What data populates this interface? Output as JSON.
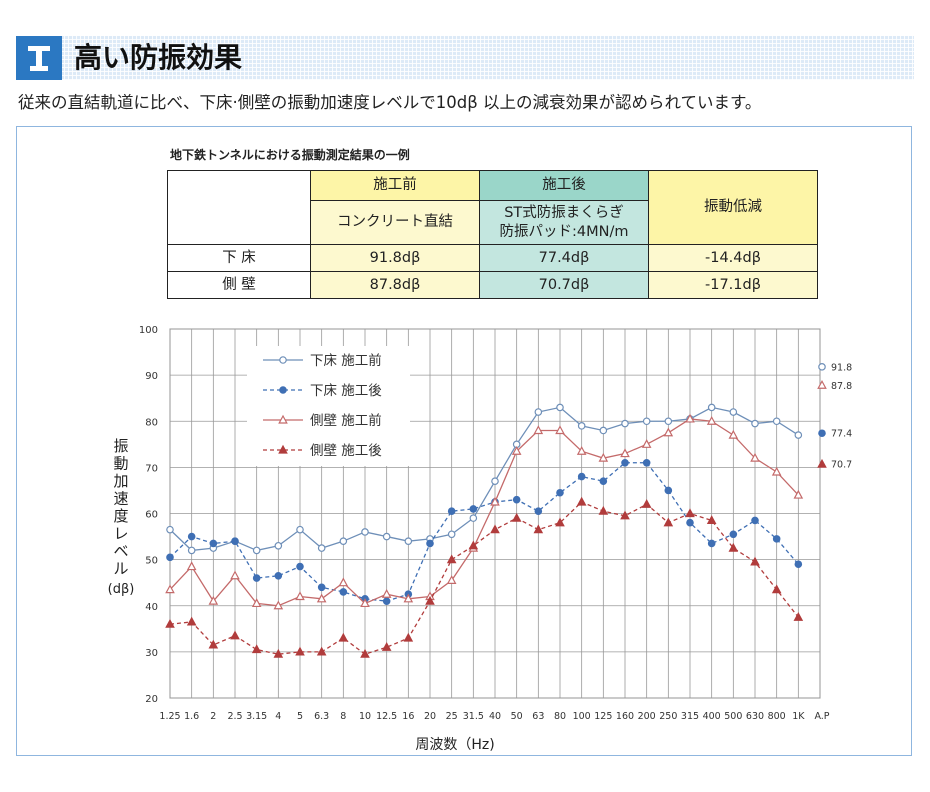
{
  "header": {
    "title": "高い防振効果",
    "icon": "rail-icon",
    "icon_color": "#2b78c2",
    "bar_color": "#ddeaf7"
  },
  "intro": "従来の直結軌道に比べ、下床·側壁の振動加速度レベルで10dβ 以上の減衰効果が認められています。",
  "table": {
    "caption": "地下鉄トンネルにおける振動測定結果の一例",
    "col_before": "施工前",
    "col_before_sub": "コンクリート直結",
    "col_after": "施工後",
    "col_after_sub1": "ST式防振まくらぎ",
    "col_after_sub2": "防振パッド:4MN/m",
    "col_reduction": "振動低減",
    "rows": [
      {
        "label": "下 床",
        "before": "91.8dβ",
        "after": "77.4dβ",
        "reduction": "-14.4dβ"
      },
      {
        "label": "側 壁",
        "before": "87.8dβ",
        "after": "70.7dβ",
        "reduction": "-17.1dβ"
      }
    ]
  },
  "chart_data": {
    "type": "line",
    "xlabel": "周波数（Hz)",
    "ylabel": "振動加速度レベル(dβ)",
    "ylim": [
      20,
      100
    ],
    "yticks": [
      "100",
      "90",
      "80",
      "70",
      "60",
      "50",
      "40",
      "30",
      "20"
    ],
    "grid": true,
    "legend_position": "top-left",
    "categories": [
      "1.25",
      "1.6",
      "2",
      "2.5",
      "3.15",
      "4",
      "5",
      "6.3",
      "8",
      "10",
      "12.5",
      "16",
      "20",
      "25",
      "31.5",
      "40",
      "50",
      "63",
      "80",
      "100",
      "125",
      "160",
      "200",
      "250",
      "315",
      "400",
      "500",
      "630",
      "800",
      "1K"
    ],
    "ap_label": "A.P",
    "series": [
      {
        "name": "下床 施工前",
        "color": "#6e8fb8",
        "dashed": false,
        "marker": "circle-open",
        "values": [
          56.5,
          52,
          52.5,
          54,
          52,
          53,
          56.5,
          52.5,
          54,
          56,
          55,
          54,
          54.5,
          55.5,
          59,
          67,
          75,
          82,
          83,
          79,
          78,
          79.5,
          80,
          80,
          80.5,
          83,
          82,
          79.5,
          80,
          77
        ],
        "ap_value": 91.8,
        "ap_label": "91.8"
      },
      {
        "name": "下床 施工後",
        "color": "#3f6fb4",
        "dashed": true,
        "marker": "circle-filled",
        "values": [
          50.5,
          55,
          53.5,
          54,
          46,
          46.5,
          48.5,
          44,
          43,
          41.5,
          41,
          42.5,
          53.5,
          60.5,
          61,
          62.5,
          63,
          60.5,
          64.5,
          68,
          67,
          71,
          71,
          65,
          58,
          53.5,
          55.5,
          58.5,
          54.5,
          49
        ],
        "ap_value": 77.4,
        "ap_label": "77.4"
      },
      {
        "name": "側壁 施工前",
        "color": "#c46a6a",
        "dashed": false,
        "marker": "triangle-open",
        "values": [
          43.5,
          48.5,
          41,
          46.5,
          40.5,
          40,
          42,
          41.5,
          45,
          40.5,
          42.5,
          41.5,
          42,
          45.5,
          52.5,
          62.5,
          73.5,
          78,
          78,
          73.5,
          72,
          73,
          75,
          77.5,
          80.5,
          80,
          77,
          72,
          69,
          64
        ],
        "ap_value": 87.8,
        "ap_label": "87.8"
      },
      {
        "name": "側壁 施工後",
        "color": "#b13c3c",
        "dashed": true,
        "marker": "triangle-filled",
        "values": [
          36,
          36.5,
          31.5,
          33.5,
          30.5,
          29.5,
          30,
          30,
          33,
          29.5,
          31,
          33,
          41,
          50,
          53,
          56.5,
          59,
          56.5,
          58,
          62.5,
          60.5,
          59.5,
          62,
          58,
          60,
          58.5,
          52.5,
          49.5,
          43.5,
          37.5
        ],
        "ap_value": 70.7,
        "ap_label": "70.7"
      }
    ]
  }
}
